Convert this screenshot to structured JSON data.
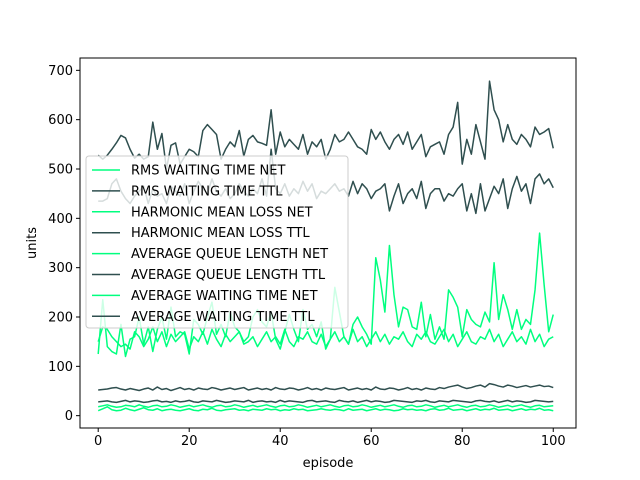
{
  "chart_data": {
    "type": "line",
    "xlabel": "episode",
    "ylabel": "units",
    "xlim": [
      -4,
      105
    ],
    "ylim": [
      -25,
      725
    ],
    "xticks": [
      0,
      20,
      40,
      60,
      80,
      100
    ],
    "yticks": [
      0,
      100,
      200,
      300,
      400,
      500,
      600,
      700
    ],
    "grid": false,
    "legend_placement": "center-left",
    "series": [
      {
        "name": "RMS WAITING TIME NET",
        "color": "#00ff7f",
        "values": [
          125,
          235,
          140,
          130,
          125,
          185,
          120,
          155,
          160,
          200,
          145,
          180,
          130,
          175,
          200,
          155,
          220,
          160,
          170,
          165,
          125,
          195,
          185,
          165,
          200,
          230,
          165,
          185,
          160,
          210,
          180,
          170,
          150,
          160,
          200,
          215,
          190,
          180,
          210,
          155,
          135,
          170,
          205,
          175,
          150,
          215,
          175,
          185,
          160,
          190,
          135,
          155,
          260,
          210,
          160,
          145,
          185,
          200,
          180,
          165,
          145,
          320,
          275,
          210,
          345,
          245,
          180,
          220,
          215,
          180,
          175,
          230,
          160,
          205,
          155,
          180,
          155,
          255,
          240,
          220,
          160,
          215,
          195,
          185,
          180,
          210,
          190,
          310,
          195,
          245,
          215,
          175,
          215,
          175,
          195,
          185,
          255,
          370,
          265,
          170,
          205
        ]
      },
      {
        "name": "RMS WAITING TIME TTL",
        "color": "#2f4f4f",
        "values": [
          435,
          435,
          440,
          470,
          480,
          455,
          440,
          430,
          445,
          455,
          465,
          430,
          460,
          445,
          450,
          430,
          465,
          455,
          445,
          470,
          430,
          455,
          475,
          460,
          450,
          480,
          455,
          445,
          460,
          440,
          450,
          470,
          455,
          445,
          460,
          450,
          480,
          445,
          540,
          460,
          450,
          470,
          445,
          460,
          450,
          475,
          455,
          470,
          440,
          455,
          450,
          460,
          470,
          455,
          460,
          445,
          475,
          450,
          470,
          460,
          440,
          455,
          460,
          470,
          415,
          445,
          470,
          430,
          450,
          460,
          440,
          475,
          420,
          450,
          460,
          460,
          435,
          450,
          445,
          460,
          470,
          415,
          450,
          410,
          470,
          415,
          440,
          465,
          450,
          480,
          420,
          460,
          485,
          455,
          470,
          430,
          480,
          490,
          470,
          480,
          462
        ]
      },
      {
        "name": "HARMONIC MEAN LOSS NET",
        "color": "#00ff7f",
        "values": [
          10,
          14,
          18,
          12,
          10,
          11,
          15,
          12,
          10,
          13,
          16,
          12,
          11,
          14,
          10,
          12,
          13,
          11,
          10,
          12,
          14,
          11,
          10,
          13,
          12,
          15,
          11,
          10,
          12,
          13,
          14,
          11,
          12,
          10,
          13,
          12,
          11,
          14,
          12,
          13,
          10,
          12,
          11,
          14,
          12,
          13,
          10,
          11,
          12,
          14,
          12,
          11,
          13,
          12,
          10,
          14,
          11,
          12,
          13,
          10,
          12,
          14,
          11,
          13,
          12,
          10,
          11,
          14,
          12,
          13,
          11,
          12,
          10,
          13,
          14,
          11,
          12,
          15,
          11,
          12,
          13,
          10,
          12,
          14,
          11,
          13,
          12,
          15,
          11,
          12,
          13,
          10,
          12,
          14,
          11,
          13,
          12,
          15,
          11,
          12,
          10
        ]
      },
      {
        "name": "HARMONIC MEAN LOSS TTL",
        "color": "#2f4f4f",
        "values": [
          528,
          520,
          528,
          540,
          553,
          568,
          563,
          540,
          522,
          530,
          520,
          525,
          595,
          540,
          572,
          500,
          548,
          553,
          510,
          525,
          540,
          535,
          525,
          578,
          590,
          580,
          570,
          520,
          540,
          555,
          545,
          578,
          526,
          560,
          568,
          555,
          552,
          548,
          620,
          530,
          575,
          545,
          560,
          550,
          540,
          570,
          530,
          555,
          545,
          560,
          520,
          540,
          570,
          555,
          560,
          575,
          560,
          545,
          540,
          530,
          580,
          560,
          575,
          555,
          540,
          560,
          570,
          550,
          575,
          540,
          555,
          570,
          525,
          545,
          550,
          555,
          530,
          570,
          585,
          635,
          510,
          560,
          530,
          590,
          555,
          520,
          678,
          620,
          600,
          555,
          590,
          560,
          550,
          570,
          560,
          545,
          585,
          570,
          575,
          582,
          542
        ]
      },
      {
        "name": "AVERAGE QUEUE LENGTH NET",
        "color": "#00ff7f",
        "values": [
          150,
          180,
          175,
          160,
          150,
          140,
          145,
          135,
          170,
          160,
          140,
          155,
          180,
          150,
          170,
          140,
          165,
          150,
          160,
          170,
          135,
          160,
          150,
          170,
          145,
          175,
          155,
          140,
          165,
          150,
          160,
          170,
          145,
          150,
          160,
          140,
          155,
          170,
          150,
          160,
          145,
          175,
          150,
          140,
          160,
          155,
          170,
          150,
          145,
          165,
          140,
          155,
          170,
          150,
          160,
          145,
          175,
          150,
          160,
          140,
          155,
          170,
          150,
          165,
          145,
          160,
          155,
          170,
          150,
          140,
          165,
          155,
          170,
          150,
          145,
          160,
          175,
          150,
          165,
          140,
          155,
          170,
          150,
          145,
          160,
          155,
          175,
          150,
          165,
          140,
          155,
          170,
          150,
          160,
          145,
          175,
          150,
          165,
          140,
          155,
          160
        ]
      },
      {
        "name": "AVERAGE QUEUE LENGTH TTL",
        "color": "#2f4f4f",
        "values": [
          52,
          53,
          54,
          56,
          57,
          54,
          52,
          55,
          53,
          51,
          54,
          56,
          52,
          58,
          53,
          55,
          51,
          54,
          57,
          53,
          55,
          52,
          56,
          54,
          53,
          57,
          55,
          52,
          54,
          56,
          53,
          55,
          57,
          52,
          54,
          56,
          53,
          55,
          52,
          57,
          54,
          53,
          56,
          55,
          52,
          54,
          57,
          53,
          55,
          52,
          56,
          54,
          53,
          55,
          57,
          52,
          54,
          56,
          53,
          55,
          52,
          58,
          54,
          53,
          56,
          55,
          52,
          54,
          57,
          53,
          55,
          52,
          56,
          54,
          53,
          57,
          55,
          58,
          60,
          62,
          58,
          55,
          57,
          60,
          62,
          58,
          65,
          63,
          60,
          58,
          62,
          60,
          57,
          59,
          61,
          58,
          60,
          62,
          59,
          60,
          57
        ]
      },
      {
        "name": "AVERAGE WAITING TIME NET",
        "color": "#00ff7f",
        "values": [
          18,
          20,
          22,
          19,
          17,
          18,
          21,
          20,
          18,
          22,
          19,
          17,
          20,
          21,
          18,
          19,
          22,
          20,
          17,
          19,
          21,
          18,
          20,
          22,
          19,
          17,
          20,
          21,
          18,
          19,
          22,
          20,
          17,
          19,
          21,
          18,
          20,
          22,
          19,
          17,
          20,
          21,
          18,
          19,
          22,
          20,
          17,
          19,
          21,
          18,
          20,
          22,
          19,
          17,
          20,
          21,
          18,
          19,
          22,
          20,
          17,
          19,
          21,
          18,
          20,
          22,
          19,
          17,
          20,
          21,
          18,
          19,
          22,
          20,
          17,
          19,
          21,
          18,
          20,
          22,
          19,
          17,
          20,
          21,
          18,
          19,
          22,
          20,
          17,
          19,
          21,
          18,
          20,
          22,
          19,
          17,
          20,
          21,
          18,
          19,
          20
        ]
      },
      {
        "name": "AVERAGE WAITING TIME TTL",
        "color": "#2f4f4f",
        "values": [
          28,
          29,
          30,
          28,
          27,
          29,
          31,
          28,
          30,
          29,
          27,
          28,
          30,
          31,
          28,
          29,
          27,
          30,
          28,
          29,
          31,
          28,
          27,
          30,
          29,
          28,
          31,
          29,
          27,
          28,
          30,
          29,
          28,
          31,
          27,
          29,
          30,
          28,
          29,
          27,
          31,
          28,
          30,
          29,
          28,
          27,
          30,
          31,
          28,
          29,
          30,
          28,
          27,
          31,
          29,
          28,
          30,
          27,
          29,
          31,
          28,
          30,
          29,
          27,
          28,
          31,
          30,
          29,
          28,
          27,
          30,
          29,
          31,
          28,
          27,
          30,
          29,
          28,
          31,
          30,
          29,
          28,
          27,
          30,
          31,
          29,
          28,
          30,
          27,
          29,
          31,
          28,
          30,
          29,
          27,
          28,
          31,
          30,
          29,
          28,
          29
        ]
      }
    ]
  }
}
